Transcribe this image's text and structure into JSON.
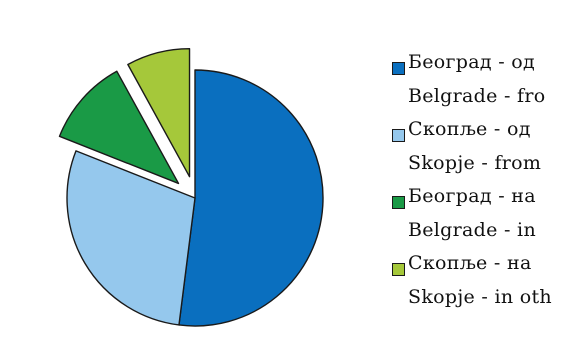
{
  "chart_data": {
    "type": "pie",
    "title": "",
    "slices": [
      {
        "label": "Београд - од",
        "label_en": "Belgrade - fro",
        "value": 52,
        "color": "#0a6fbf",
        "exploded": false
      },
      {
        "label": "Скопље - од",
        "label_en": "Skopje - from",
        "value": 29,
        "color": "#95c8ed",
        "exploded": false
      },
      {
        "label": "Београд - на",
        "label_en": "Belgrade - in",
        "value": 11,
        "color": "#1a9a46",
        "exploded": true
      },
      {
        "label": "Скопље - на",
        "label_en": "Skopje - in oth",
        "value": 8,
        "color": "#a5c83a",
        "exploded": true
      }
    ],
    "legend_position": "right"
  }
}
